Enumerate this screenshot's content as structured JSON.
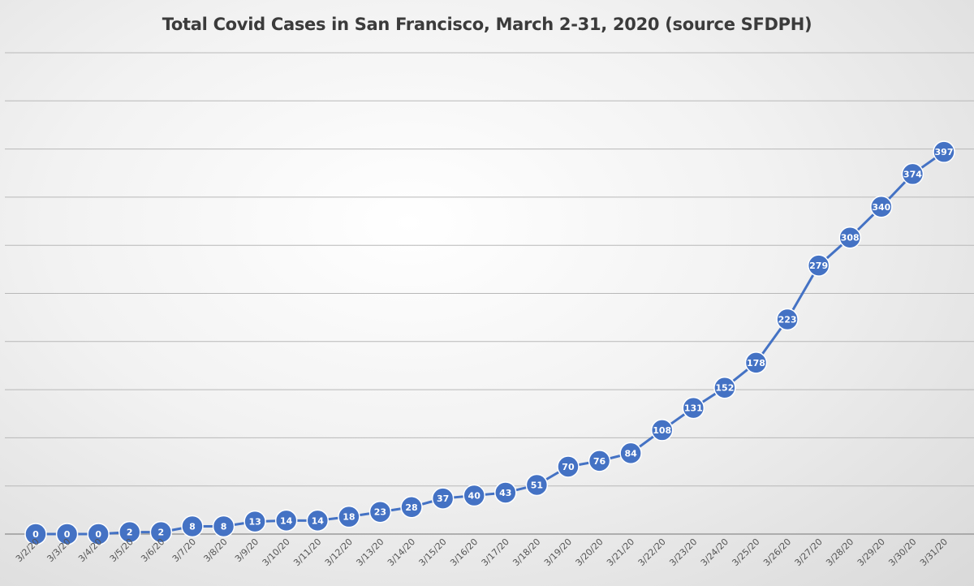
{
  "chart_data": {
    "type": "line",
    "title": "Total Covid Cases in San Francisco, March 2-31, 2020 (source SFDPH)",
    "xlabel": "",
    "ylabel": "",
    "ylim": [
      0,
      500
    ],
    "y_gridlines": [
      0,
      50,
      100,
      150,
      200,
      250,
      300,
      350,
      400,
      450,
      500
    ],
    "grid": true,
    "data_labels": true,
    "categories": [
      "3/2/20",
      "3/3/20",
      "3/4/20",
      "3/5/20",
      "3/6/20",
      "3/7/20",
      "3/8/20",
      "3/9/20",
      "3/10/20",
      "3/11/20",
      "3/12/20",
      "3/13/20",
      "3/14/20",
      "3/15/20",
      "3/16/20",
      "3/17/20",
      "3/18/20",
      "3/19/20",
      "3/20/20",
      "3/21/20",
      "3/22/20",
      "3/23/20",
      "3/24/20",
      "3/25/20",
      "3/26/20",
      "3/27/20",
      "3/28/20",
      "3/29/20",
      "3/30/20",
      "3/31/20"
    ],
    "series": [
      {
        "name": "Total Cases",
        "color": "#4472c4",
        "values": [
          0,
          0,
          0,
          2,
          2,
          8,
          8,
          13,
          14,
          14,
          18,
          23,
          28,
          37,
          40,
          43,
          51,
          70,
          76,
          84,
          108,
          131,
          152,
          178,
          223,
          279,
          308,
          340,
          374,
          397
        ]
      }
    ]
  }
}
